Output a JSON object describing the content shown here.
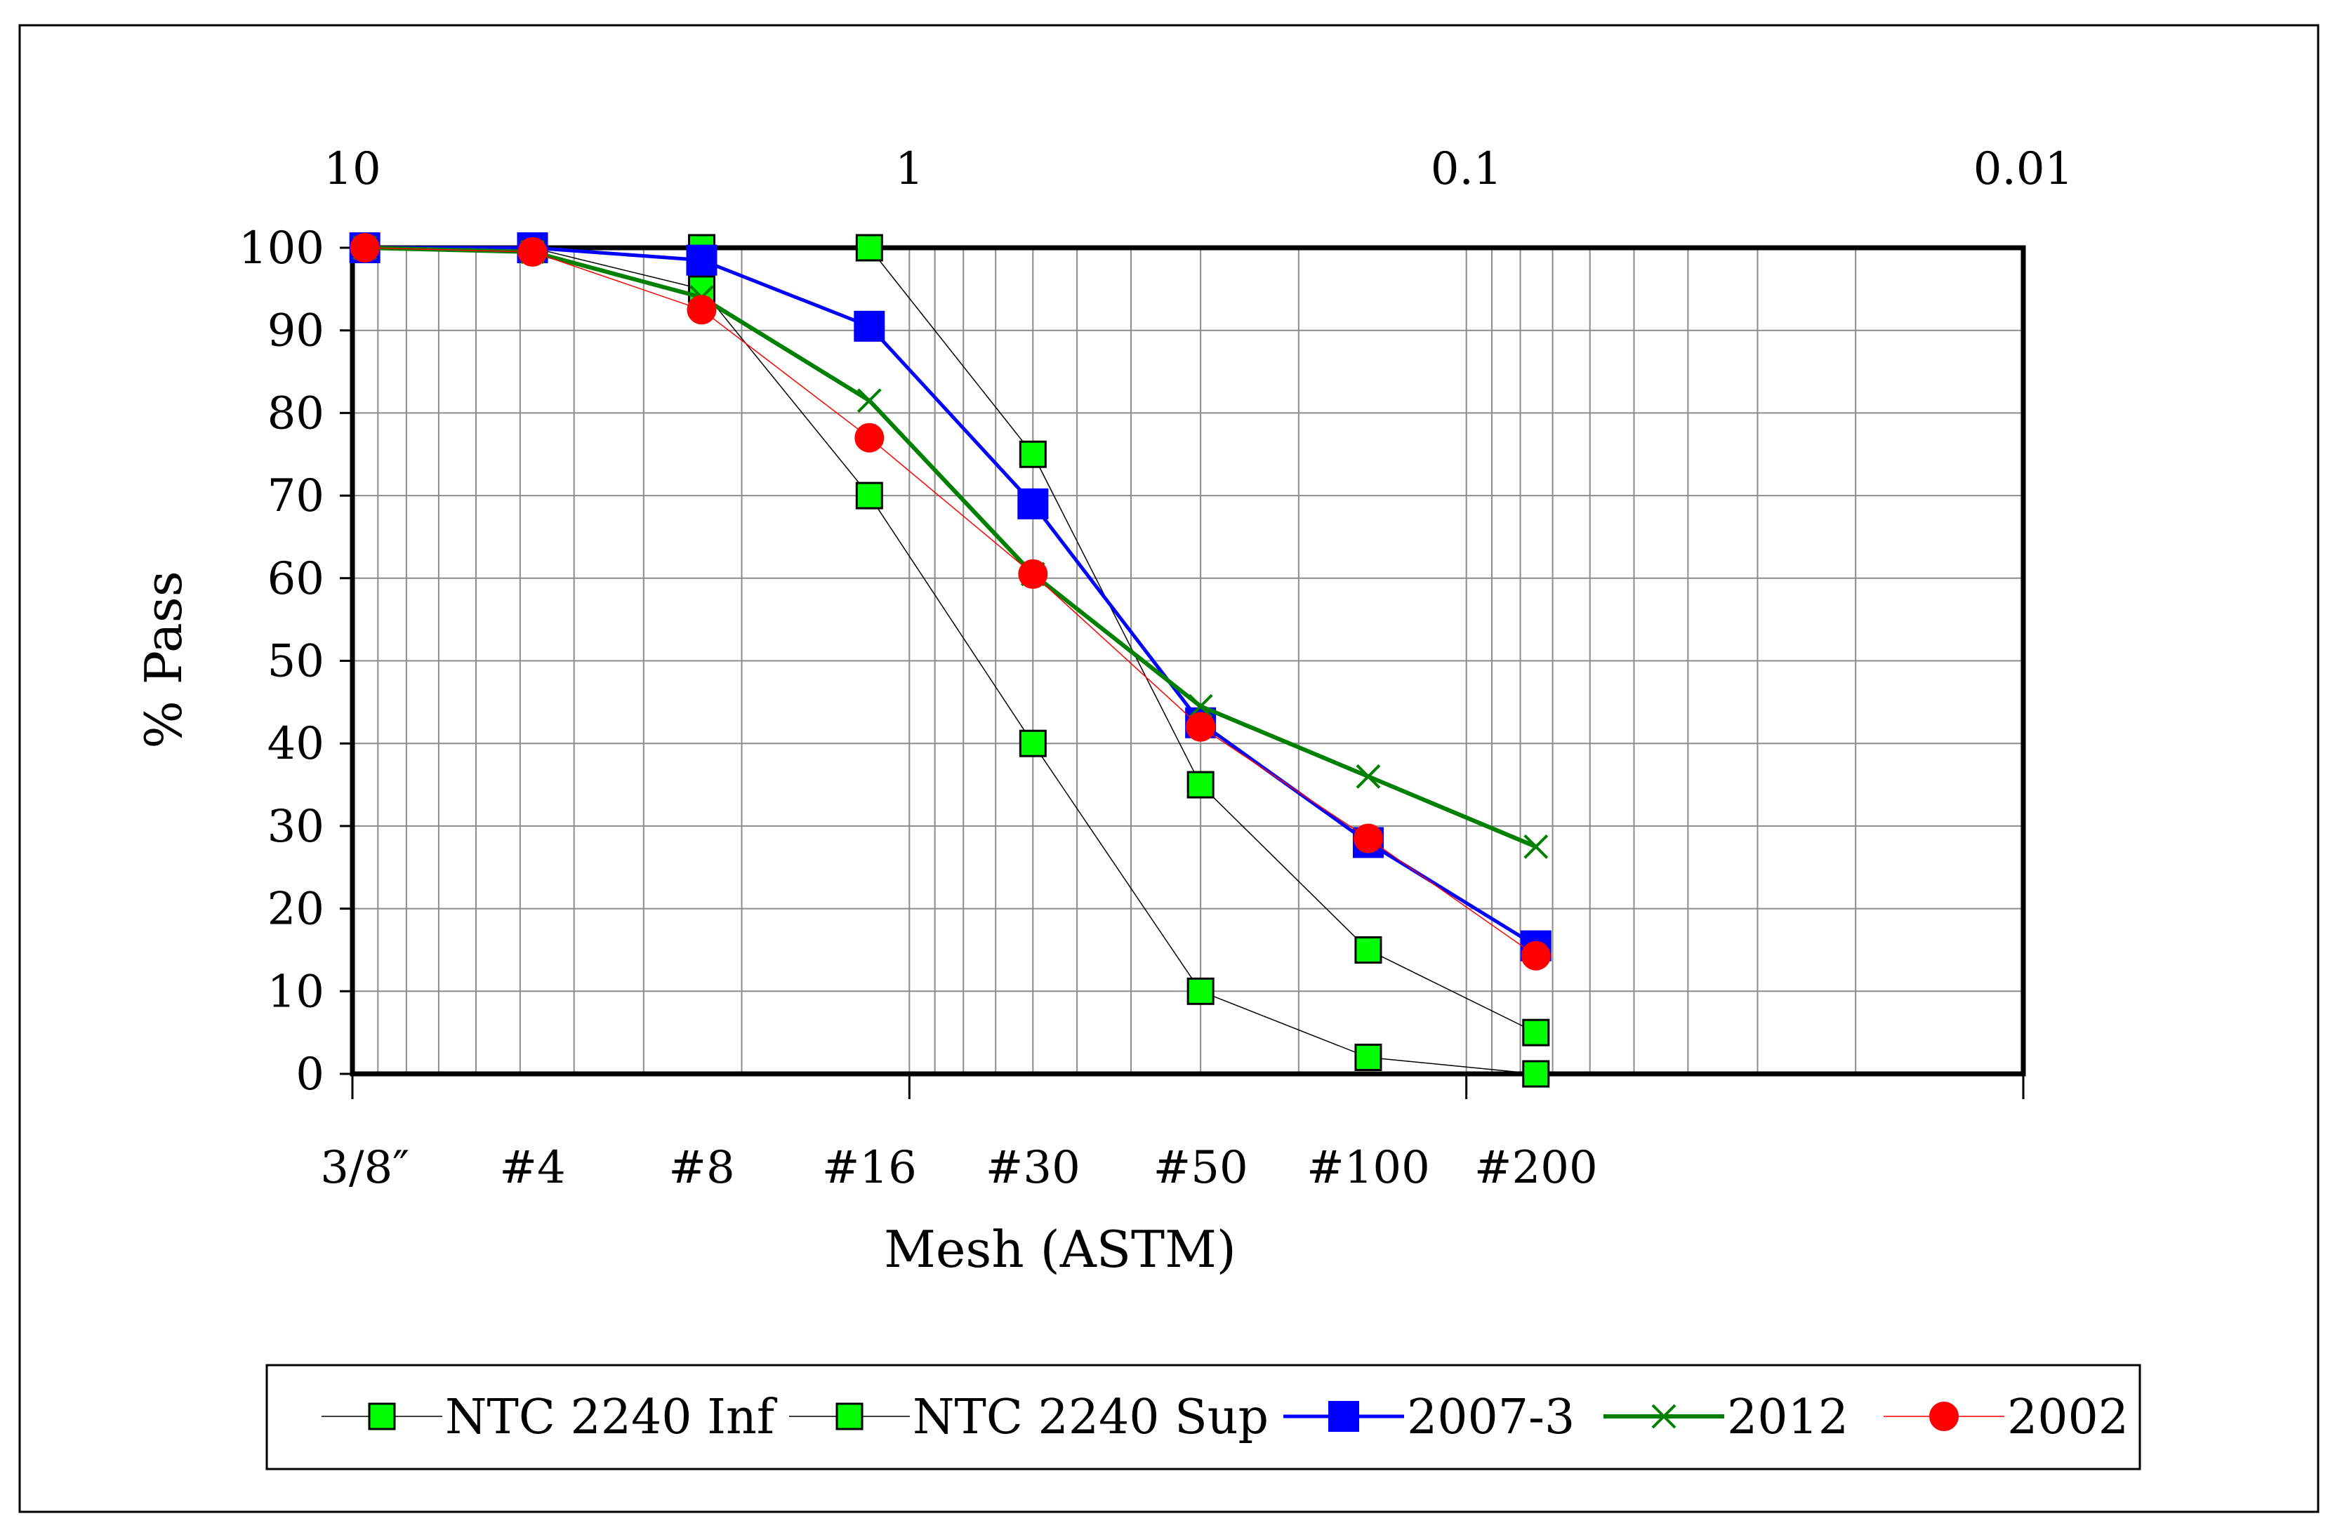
{
  "chart_data": {
    "type": "line",
    "title": "",
    "xlabel": "Mesh (ASTM)",
    "ylabel": "% Pass",
    "xscale": "log",
    "xlim_mm": [
      10,
      0.01
    ],
    "ylim": [
      0,
      100
    ],
    "yticks": [
      0,
      10,
      20,
      30,
      40,
      50,
      60,
      70,
      80,
      90,
      100
    ],
    "top_ticks": [
      {
        "label": "10",
        "value": 10
      },
      {
        "label": "1",
        "value": 1
      },
      {
        "label": "0.1",
        "value": 0.1
      },
      {
        "label": "0.01",
        "value": 0.01
      }
    ],
    "mesh_labels": [
      "3/8″",
      "#4",
      "#8",
      "#16",
      "#30",
      "#50",
      "#100",
      "#200"
    ],
    "mesh_sizes_mm": [
      9.5,
      4.75,
      2.36,
      1.18,
      0.6,
      0.3,
      0.15,
      0.075
    ],
    "grid": true,
    "legend_position": "bottom",
    "series": [
      {
        "name": "NTC 2240 Inf",
        "color": "#000000",
        "marker": "square",
        "marker_color": "#00ff00",
        "linewidth": 1.5,
        "x": [
          0.6,
          0.3,
          0.15,
          0.075,
          1.18,
          2.36,
          4.75,
          9.5
        ],
        "values": [
          40,
          10,
          2,
          0,
          70,
          95,
          100,
          100
        ],
        "order": [
          7,
          6,
          5,
          4,
          0,
          1,
          2,
          3
        ]
      },
      {
        "name": "NTC 2240 Sup",
        "color": "#000000",
        "marker": "square",
        "marker_color": "#00ff00",
        "linewidth": 1.5,
        "x": [
          2.36,
          1.18,
          0.6,
          0.3,
          0.15,
          0.075
        ],
        "values": [
          100,
          100,
          75,
          35,
          15,
          5
        ]
      },
      {
        "name": "2007-3",
        "color": "#0000ff",
        "marker": "square",
        "marker_color": "#0000ff",
        "linewidth": 5,
        "x": [
          9.5,
          4.75,
          2.36,
          1.18,
          0.6,
          0.3,
          0.15,
          0.075
        ],
        "values": [
          100,
          100,
          98.5,
          90.5,
          69,
          42.5,
          28,
          15.5
        ]
      },
      {
        "name": "2012",
        "color": "#008000",
        "marker": "x",
        "marker_color": "#008000",
        "linewidth": 6,
        "x": [
          9.5,
          4.75,
          2.36,
          1.18,
          0.6,
          0.3,
          0.15,
          0.075
        ],
        "values": [
          100,
          99.5,
          94,
          81.5,
          60.5,
          44.5,
          36,
          27.5
        ]
      },
      {
        "name": "2002",
        "color": "#ff0000",
        "marker": "circle",
        "marker_color": "#ff0000",
        "linewidth": 1.5,
        "x": [
          9.5,
          4.75,
          2.36,
          1.18,
          0.6,
          0.3,
          0.15,
          0.075
        ],
        "values": [
          100,
          99.5,
          92.5,
          77,
          60.5,
          42,
          28.5,
          14.3
        ]
      }
    ]
  }
}
